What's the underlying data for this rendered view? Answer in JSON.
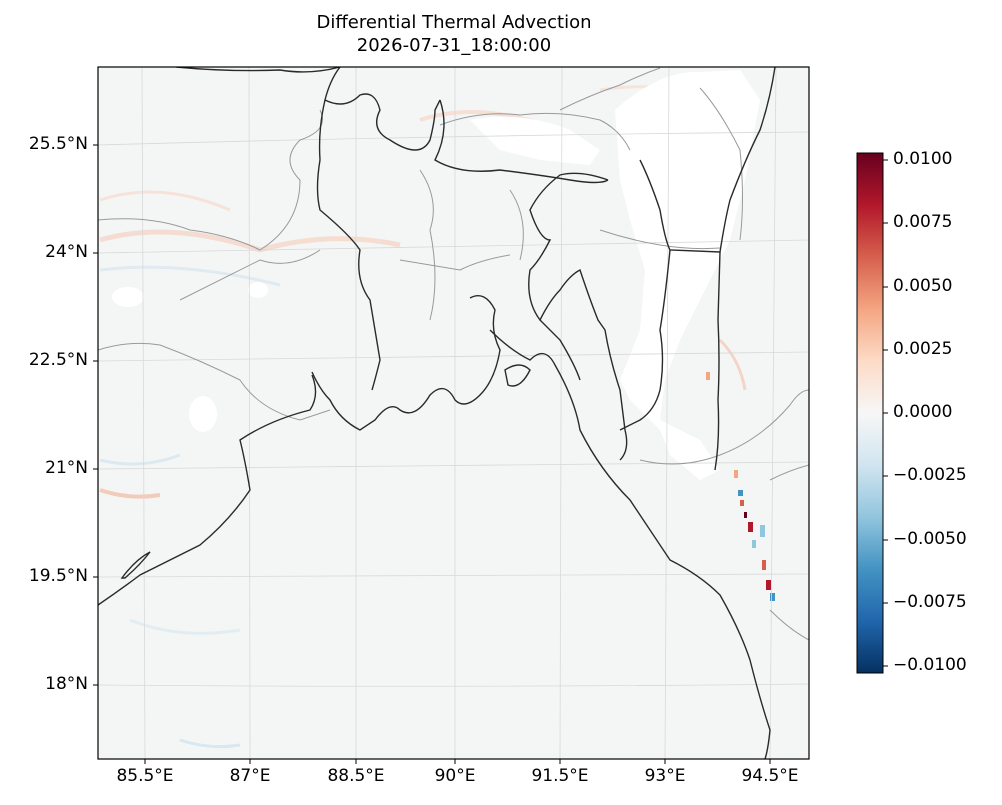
{
  "title": {
    "line1": "Differential Thermal Advection",
    "line2": "2026-07-31_18:00:00"
  },
  "map": {
    "lat_ticks": [
      "25.5°N",
      "24°N",
      "22.5°N",
      "21°N",
      "19.5°N",
      "18°N"
    ],
    "lon_ticks": [
      "85.5°E",
      "87°E",
      "88.5°E",
      "90°E",
      "91.5°E",
      "93°E",
      "94.5°E"
    ],
    "background_color": "#f4f6f6",
    "coastline_color": "#222222",
    "border_color": "#999999"
  },
  "colorbar": {
    "colormap": "RdBu_r",
    "ticks": [
      "0.0100",
      "0.0075",
      "0.0050",
      "0.0025",
      "0.0000",
      "−0.0025",
      "−0.0050",
      "−0.0075",
      "−0.0100"
    ],
    "range": [
      -0.01,
      0.01
    ],
    "colors": [
      "#053061",
      "#2166ac",
      "#4393c3",
      "#92c5de",
      "#d1e5f0",
      "#f7f7f7",
      "#fddbc7",
      "#f4a582",
      "#d6604d",
      "#b2182b",
      "#67001f"
    ]
  }
}
